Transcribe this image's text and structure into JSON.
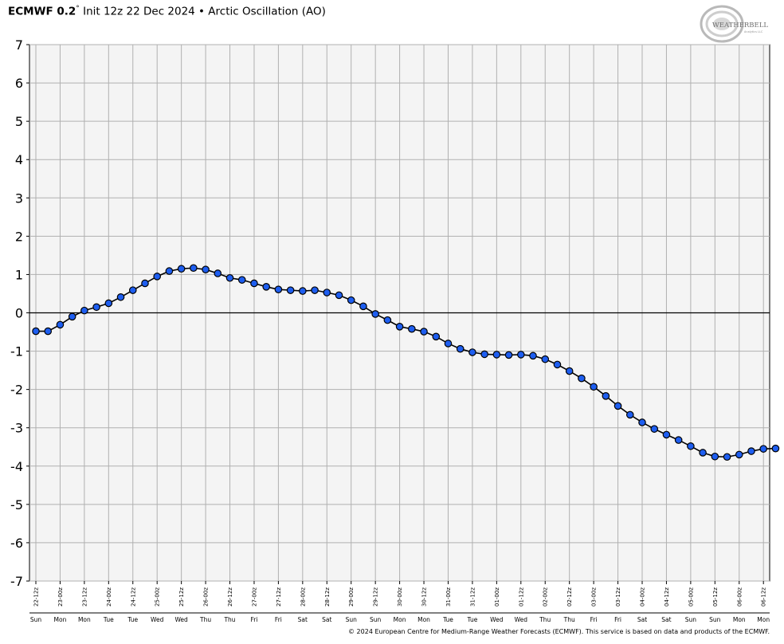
{
  "header": {
    "model": "ECMWF 0.2",
    "degree": "°",
    "subtitle": "Init 12z 22 Dec 2024 • Arctic Oscillation (AO)"
  },
  "logo": {
    "text_main": "WEATHERBELL",
    "text_small": "Analytics LLC"
  },
  "footer": "© 2024 European Centre for Medium-Range Weather Forecasts (ECMWF). This service is based on data and products of the ECMWF.",
  "chart_data": {
    "type": "line",
    "title": "Arctic Oscillation (AO)",
    "ylim": [
      -7,
      7
    ],
    "yticks": [
      7,
      6,
      5,
      4,
      3,
      2,
      1,
      0,
      -1,
      -2,
      -3,
      -4,
      -5,
      -6,
      -7
    ],
    "grid": true,
    "x_tick_labels": [
      "22-12z",
      "23-00z",
      "23-12z",
      "24-00z",
      "24-12z",
      "25-00z",
      "25-12z",
      "26-00z",
      "26-12z",
      "27-00z",
      "27-12z",
      "28-00z",
      "28-12z",
      "29-00z",
      "29-12z",
      "30-00z",
      "30-12z",
      "31-00z",
      "31-12z",
      "01-00z",
      "01-12z",
      "02-00z",
      "02-12z",
      "03-00z",
      "03-12z",
      "04-00z",
      "04-12z",
      "05-00z",
      "05-12z",
      "06-00z",
      "06-12z"
    ],
    "x_day_labels": [
      "Sun",
      "Mon",
      "Mon",
      "Tue",
      "Tue",
      "Wed",
      "Wed",
      "Thu",
      "Thu",
      "Fri",
      "Fri",
      "Sat",
      "Sat",
      "Sun",
      "Sun",
      "Mon",
      "Mon",
      "Tue",
      "Tue",
      "Wed",
      "Wed",
      "Thu",
      "Thu",
      "Fri",
      "Fri",
      "Sat",
      "Sat",
      "Sun",
      "Sun",
      "Mon",
      "Mon"
    ],
    "series": [
      {
        "color": "#1e5ef0",
        "values": [
          -0.48,
          -0.48,
          -0.31,
          -0.1,
          0.06,
          0.15,
          0.25,
          0.41,
          0.59,
          0.77,
          0.95,
          1.09,
          1.15,
          1.17,
          1.13,
          1.03,
          0.91,
          0.86,
          0.77,
          0.68,
          0.61,
          0.59,
          0.57,
          0.59,
          0.53,
          0.46,
          0.33,
          0.17,
          -0.03,
          -0.19,
          -0.36,
          -0.42,
          -0.49,
          -0.62,
          -0.8,
          -0.94,
          -1.03,
          -1.08,
          -1.09,
          -1.1,
          -1.09,
          -1.12,
          -1.21,
          -1.35,
          -1.52,
          -1.71,
          -1.93,
          -2.17,
          -2.43,
          -2.66,
          -2.86,
          -3.03,
          -3.18,
          -3.32,
          -3.48,
          -3.65,
          -3.75,
          -3.76,
          -3.7,
          -3.61,
          -3.55,
          -3.54
        ]
      }
    ]
  }
}
